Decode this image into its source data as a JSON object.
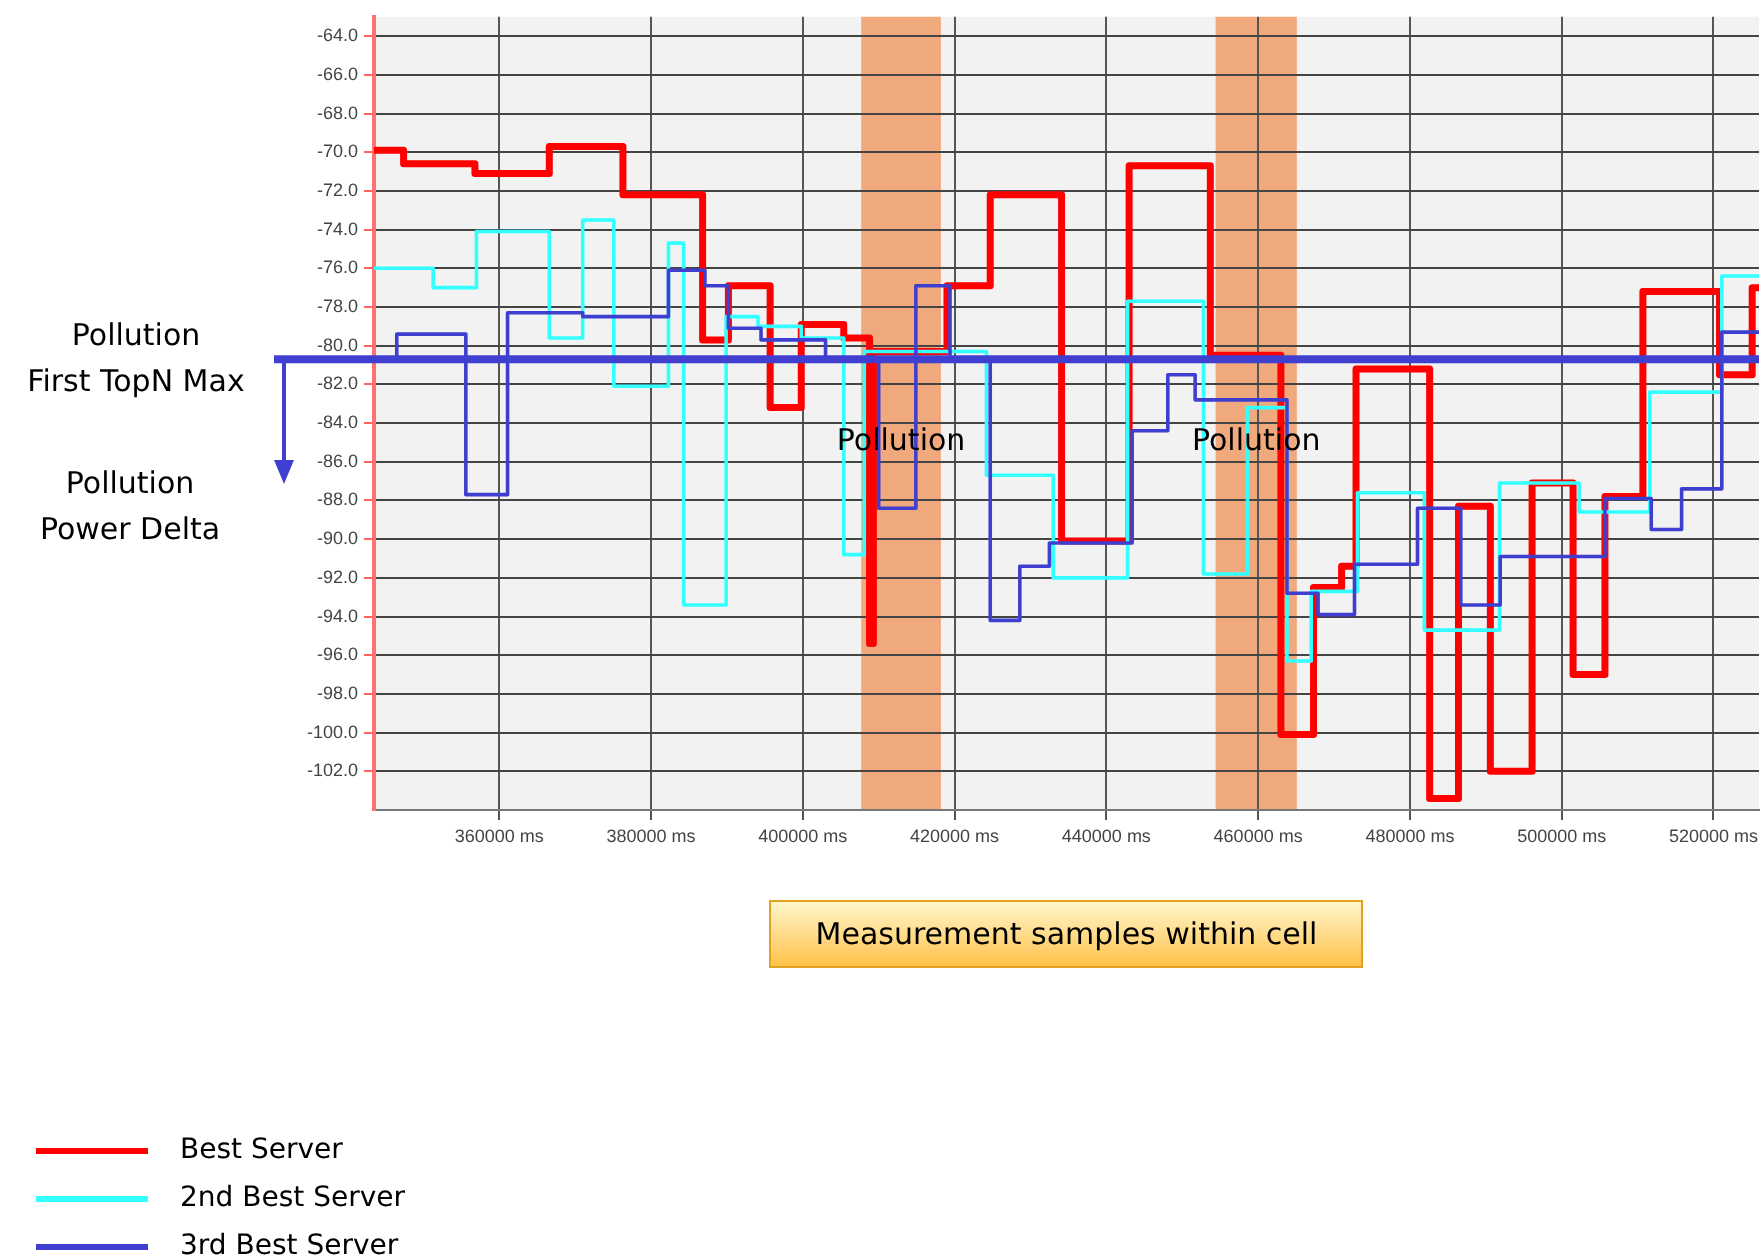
{
  "chart_data": {
    "type": "step",
    "xlabel": "Measurement samples within cell",
    "xlim": [
      343500,
      526000
    ],
    "xticks": [
      {
        "value": 360000,
        "label": "360000 ms"
      },
      {
        "value": 380000,
        "label": "380000 ms"
      },
      {
        "value": 400000,
        "label": "400000 ms"
      },
      {
        "value": 420000,
        "label": "420000 ms"
      },
      {
        "value": 440000,
        "label": "440000 ms"
      },
      {
        "value": 460000,
        "label": "460000 ms"
      },
      {
        "value": 480000,
        "label": "480000 ms"
      },
      {
        "value": 500000,
        "label": "500000 ms"
      },
      {
        "value": 520000,
        "label": "520000 ms"
      }
    ],
    "ylim": [
      -104,
      -63
    ],
    "yticks": [
      {
        "value": -64,
        "label": "-64.0"
      },
      {
        "value": -66,
        "label": "-66.0"
      },
      {
        "value": -68,
        "label": "-68.0"
      },
      {
        "value": -70,
        "label": "-70.0"
      },
      {
        "value": -72,
        "label": "-72.0"
      },
      {
        "value": -74,
        "label": "-74.0"
      },
      {
        "value": -76,
        "label": "-76.0"
      },
      {
        "value": -78,
        "label": "-78.0"
      },
      {
        "value": -80,
        "label": "-80.0"
      },
      {
        "value": -82,
        "label": "-82.0"
      },
      {
        "value": -84,
        "label": "-84.0"
      },
      {
        "value": -86,
        "label": "-86.0"
      },
      {
        "value": -88,
        "label": "-88.0"
      },
      {
        "value": -90,
        "label": "-90.0"
      },
      {
        "value": -92,
        "label": "-92.0"
      },
      {
        "value": -94,
        "label": "-94.0"
      },
      {
        "value": -96,
        "label": "-96.0"
      },
      {
        "value": -98,
        "label": "-98.0"
      },
      {
        "value": -100,
        "label": "-100.0"
      },
      {
        "value": -102,
        "label": "-102.0"
      }
    ],
    "grid": true,
    "legend": "bottom left",
    "ref_lines": [
      {
        "axis": "y",
        "value": -80.7,
        "label": "Pollution First TopN Max",
        "color": "#4040d0"
      }
    ],
    "bands": [
      {
        "axis": "x",
        "from": 407700,
        "to": 418200,
        "label": "Pollution",
        "color": "#f08a4b"
      },
      {
        "axis": "x",
        "from": 454400,
        "to": 465100,
        "label": "Pollution",
        "color": "#f08a4b"
      }
    ],
    "annotations": [
      "Pollution Power Delta"
    ],
    "series": [
      {
        "name": "Best Server",
        "color": "#ff0000",
        "x": [
          343500,
          347400,
          356800,
          366600,
          376300,
          386800,
          390200,
          395700,
          399800,
          405400,
          408800,
          409300,
          419000,
          424700,
          434100,
          443000,
          453700,
          463000,
          467300,
          471000,
          472900,
          482600,
          486400,
          490600,
          496100,
          501500,
          505700,
          510700,
          520800,
          525100,
          526000
        ],
        "values": [
          -69.9,
          -70.6,
          -71.1,
          -69.7,
          -72.2,
          -79.7,
          -76.9,
          -83.2,
          -78.9,
          -79.6,
          -95.4,
          -80.3,
          -76.9,
          -72.2,
          -90.1,
          -70.7,
          -80.5,
          -100.1,
          -92.5,
          -91.4,
          -81.2,
          -103.4,
          -88.3,
          -102.0,
          -87.1,
          -97.0,
          -87.8,
          -77.2,
          -81.5,
          -77.0,
          -77.0
        ]
      },
      {
        "name": "2nd Best Server",
        "color": "#33ffff",
        "x": [
          343500,
          351300,
          357000,
          366600,
          371000,
          375100,
          382300,
          384300,
          389900,
          394100,
          399800,
          405400,
          408100,
          424200,
          433000,
          442800,
          452800,
          458600,
          463800,
          467000,
          473100,
          481900,
          491800,
          502300,
          511600,
          521100,
          526000
        ],
        "values": [
          -76.0,
          -77.0,
          -74.1,
          -79.6,
          -73.5,
          -82.1,
          -74.7,
          -93.4,
          -78.5,
          -79.0,
          -79.6,
          -90.8,
          -80.3,
          -86.7,
          -92.0,
          -77.7,
          -91.8,
          -83.2,
          -96.3,
          -92.7,
          -87.6,
          -94.7,
          -87.1,
          -88.6,
          -82.4,
          -76.4,
          -76.4
        ]
      },
      {
        "name": "3rd Best Server",
        "color": "#3f3fcf",
        "x": [
          343500,
          346500,
          355600,
          361100,
          371000,
          382300,
          387100,
          390200,
          394500,
          403000,
          410000,
          414900,
          419400,
          424700,
          428600,
          432500,
          443400,
          448100,
          451700,
          463800,
          467900,
          472700,
          481000,
          486700,
          491900,
          505700,
          511800,
          515800,
          521100,
          526000
        ],
        "values": [
          -80.7,
          -79.4,
          -87.7,
          -78.3,
          -78.5,
          -76.1,
          -76.9,
          -79.1,
          -79.7,
          -80.7,
          -88.4,
          -76.9,
          -80.7,
          -94.2,
          -91.4,
          -90.2,
          -84.4,
          -81.5,
          -82.8,
          -92.8,
          -93.9,
          -91.3,
          -88.4,
          -93.4,
          -90.9,
          -87.9,
          -89.5,
          -87.4,
          -79.3,
          -79.3
        ]
      }
    ]
  }
}
